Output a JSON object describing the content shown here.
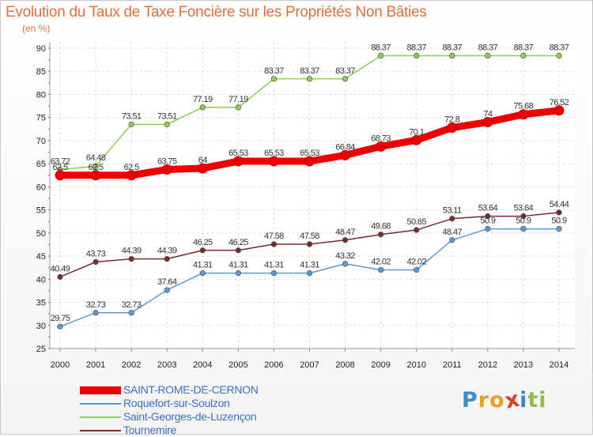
{
  "header": {
    "title": "Evolution du Taux de Taxe Foncière sur les Propriétés Non Bâties",
    "unit": "(en %)"
  },
  "logo": {
    "letters": [
      "P",
      "r",
      "o",
      "x",
      "i",
      "t",
      "i"
    ],
    "colors": [
      "#3d8ac8",
      "#e8a020",
      "#e8a020",
      "#d84030",
      "#3d8ac8",
      "#8cc040",
      "#8cc040"
    ]
  },
  "chart_data": {
    "type": "line",
    "x": [
      "2000",
      "2001",
      "2002",
      "2003",
      "2004",
      "2005",
      "2006",
      "2007",
      "2008",
      "2009",
      "2010",
      "2011",
      "2012",
      "2013",
      "2014"
    ],
    "ylim": [
      25,
      90
    ],
    "yticks": [
      "25",
      "30",
      "35",
      "40",
      "45",
      "50",
      "55",
      "60",
      "65",
      "70",
      "75",
      "80",
      "85",
      "90"
    ],
    "grid": true,
    "legend_position": "bottom-left",
    "series": [
      {
        "name": "SAINT-ROME-DE-CERNON",
        "color": "#ee0000",
        "width": 9,
        "values": [
          62.5,
          62.5,
          62.5,
          63.75,
          64,
          65.53,
          65.53,
          65.53,
          66.84,
          68.73,
          70.1,
          72.8,
          74,
          75.68,
          76.52
        ],
        "labels": [
          "62.5",
          "62.5",
          "62.5",
          "63.75",
          "64",
          "65.53",
          "65.53",
          "65.53",
          "66.84",
          "68.73",
          "70.1",
          "72.8",
          "74",
          "75.68",
          "76.52"
        ]
      },
      {
        "name": "Roquefort-sur-Soulzon",
        "color": "#5b9bd5",
        "width": 1.5,
        "values": [
          29.75,
          32.73,
          32.73,
          37.64,
          41.31,
          41.31,
          41.31,
          41.31,
          43.32,
          42.02,
          42.02,
          48.47,
          50.9,
          50.9,
          50.9
        ],
        "labels": [
          "29.75",
          "32.73",
          "32.73",
          "37.64",
          "41.31",
          "41.31",
          "41.31",
          "41.31",
          "43.32",
          "42.02",
          "42.02",
          "48.47",
          "50.9",
          "50.9",
          "50.9"
        ]
      },
      {
        "name": "Saint-Georges-de-Luzençon",
        "color": "#8cd050",
        "width": 1.5,
        "values": [
          63.72,
          64.48,
          73.51,
          73.51,
          77.19,
          77.19,
          83.37,
          83.37,
          83.37,
          88.37,
          88.37,
          88.37,
          88.37,
          88.37,
          88.37
        ],
        "labels": [
          "63.72",
          "64.48",
          "73.51",
          "73.51",
          "77.19",
          "77.19",
          "83.37",
          "83.37",
          "83.37",
          "88.37",
          "88.37",
          "88.37",
          "88.37",
          "88.37",
          "88.37"
        ]
      },
      {
        "name": "Tournemire",
        "color": "#7a2a2a",
        "width": 1.5,
        "values": [
          40.49,
          43.73,
          44.39,
          44.39,
          46.25,
          46.25,
          47.58,
          47.58,
          48.47,
          49.68,
          50.65,
          53.11,
          53.64,
          53.64,
          54.44
        ],
        "labels": [
          "40.49",
          "43.73",
          "44.39",
          "44.39",
          "46.25",
          "46.25",
          "47.58",
          "47.58",
          "48.47",
          "49.68",
          "50.65",
          "53.11",
          "53.64",
          "53.64",
          "54.44"
        ]
      }
    ]
  }
}
